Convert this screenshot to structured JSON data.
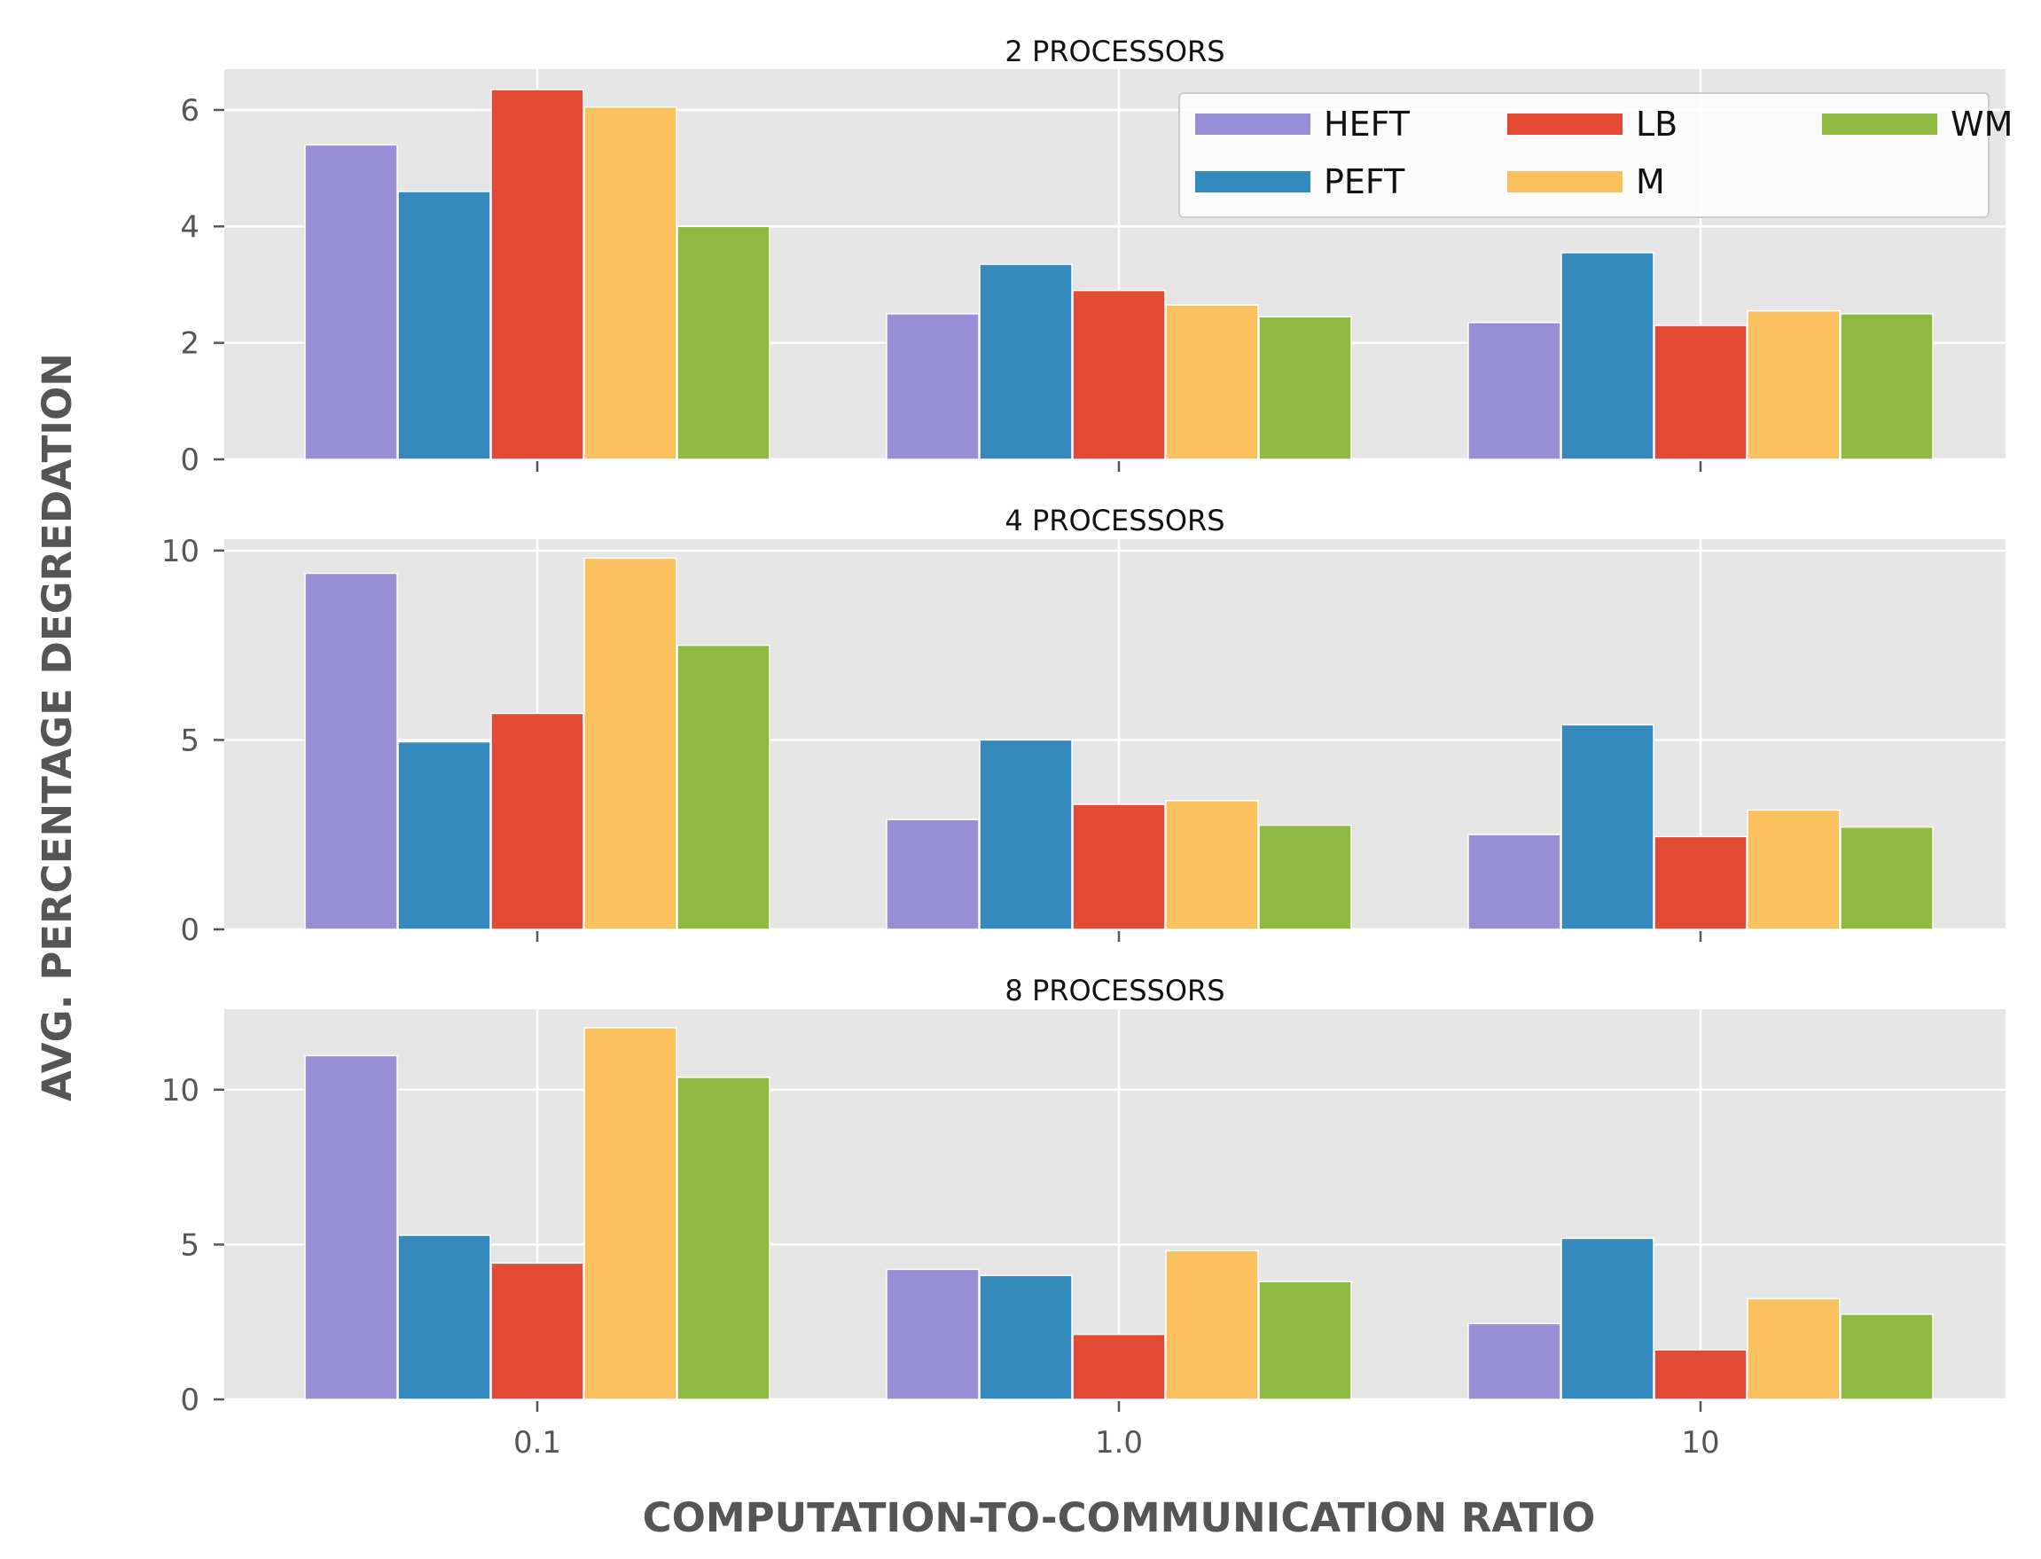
{
  "chart_data": {
    "type": "bar",
    "xlabel": "COMPUTATION-TO-COMMUNICATION RATIO",
    "ylabel": "AVG. PERCENTAGE DEGREDATION",
    "categories": [
      "0.1",
      "1.0",
      "10"
    ],
    "colors": {
      "HEFT": "#988ED5",
      "PEFT": "#348ABD",
      "LB": "#E24A33",
      "M": "#FBC15E",
      "WM": "#8EBA42"
    },
    "legend": {
      "location": "top-right of first panel",
      "columns": 3
    },
    "grid": true,
    "background": "#E5E5E5",
    "panels": [
      {
        "title": "2 PROCESSORS",
        "ylim": [
          0,
          6.7
        ],
        "yticks": [
          0,
          2,
          4,
          6
        ],
        "series": [
          {
            "name": "HEFT",
            "values": [
              5.4,
              2.5,
              2.35
            ]
          },
          {
            "name": "PEFT",
            "values": [
              4.6,
              3.35,
              3.55
            ]
          },
          {
            "name": "LB",
            "values": [
              6.35,
              2.9,
              2.3
            ]
          },
          {
            "name": "M",
            "values": [
              6.05,
              2.65,
              2.55
            ]
          },
          {
            "name": "WM",
            "values": [
              4.0,
              2.45,
              2.5
            ]
          }
        ]
      },
      {
        "title": "4 PROCESSORS",
        "ylim": [
          0,
          10.3
        ],
        "yticks": [
          0,
          5,
          10
        ],
        "series": [
          {
            "name": "HEFT",
            "values": [
              9.4,
              2.9,
              2.5
            ]
          },
          {
            "name": "PEFT",
            "values": [
              4.95,
              5.0,
              5.4
            ]
          },
          {
            "name": "LB",
            "values": [
              5.7,
              3.3,
              2.45
            ]
          },
          {
            "name": "M",
            "values": [
              9.8,
              3.4,
              3.15
            ]
          },
          {
            "name": "WM",
            "values": [
              7.5,
              2.75,
              2.7
            ]
          }
        ]
      },
      {
        "title": "8 PROCESSORS",
        "ylim": [
          0,
          12.6
        ],
        "yticks": [
          0,
          5,
          10
        ],
        "series": [
          {
            "name": "HEFT",
            "values": [
              11.1,
              4.2,
              2.45
            ]
          },
          {
            "name": "PEFT",
            "values": [
              5.3,
              4.0,
              5.2
            ]
          },
          {
            "name": "LB",
            "values": [
              4.4,
              2.1,
              1.6
            ]
          },
          {
            "name": "M",
            "values": [
              12.0,
              4.8,
              3.25
            ]
          },
          {
            "name": "WM",
            "values": [
              10.4,
              3.8,
              2.75
            ]
          }
        ]
      }
    ]
  }
}
